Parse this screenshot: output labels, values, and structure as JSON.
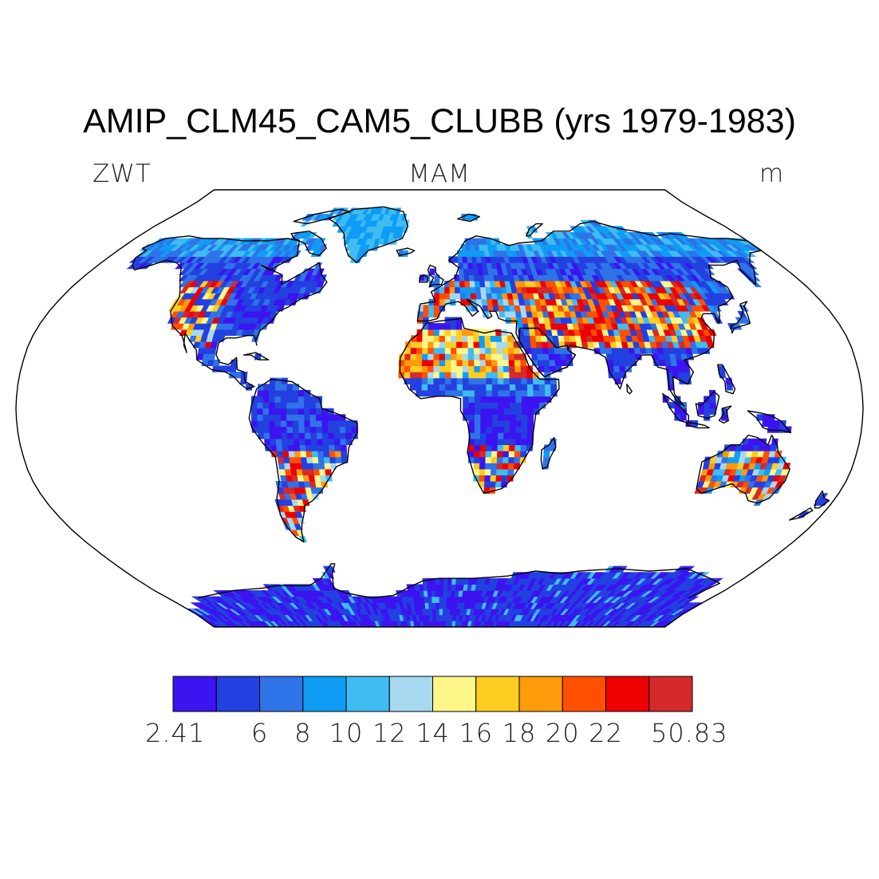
{
  "title": "AMIP_CLM45_CAM5_CLUBB (yrs 1979-1983)",
  "variable": "ZWT",
  "season": "MAM",
  "units": "m",
  "map": {
    "projection": "robinson",
    "ocean_color": "#ffffff",
    "coastline_color": "#000000"
  },
  "colorbar": {
    "colors": [
      "#3b14f0",
      "#2340e0",
      "#2f73e8",
      "#0e9cf5",
      "#3fbcf2",
      "#a6d8f0",
      "#fff68a",
      "#ffcc22",
      "#ff9a0a",
      "#ff4f00",
      "#ee0000",
      "#d42a2a"
    ],
    "tick_labels": [
      "2.41",
      "6",
      "8",
      "10",
      "12",
      "14",
      "16",
      "18",
      "20",
      "22",
      "50.83"
    ],
    "tick_bin_edges": [
      0,
      2,
      3,
      4,
      5,
      6,
      7,
      8,
      9,
      10,
      11
    ]
  }
}
